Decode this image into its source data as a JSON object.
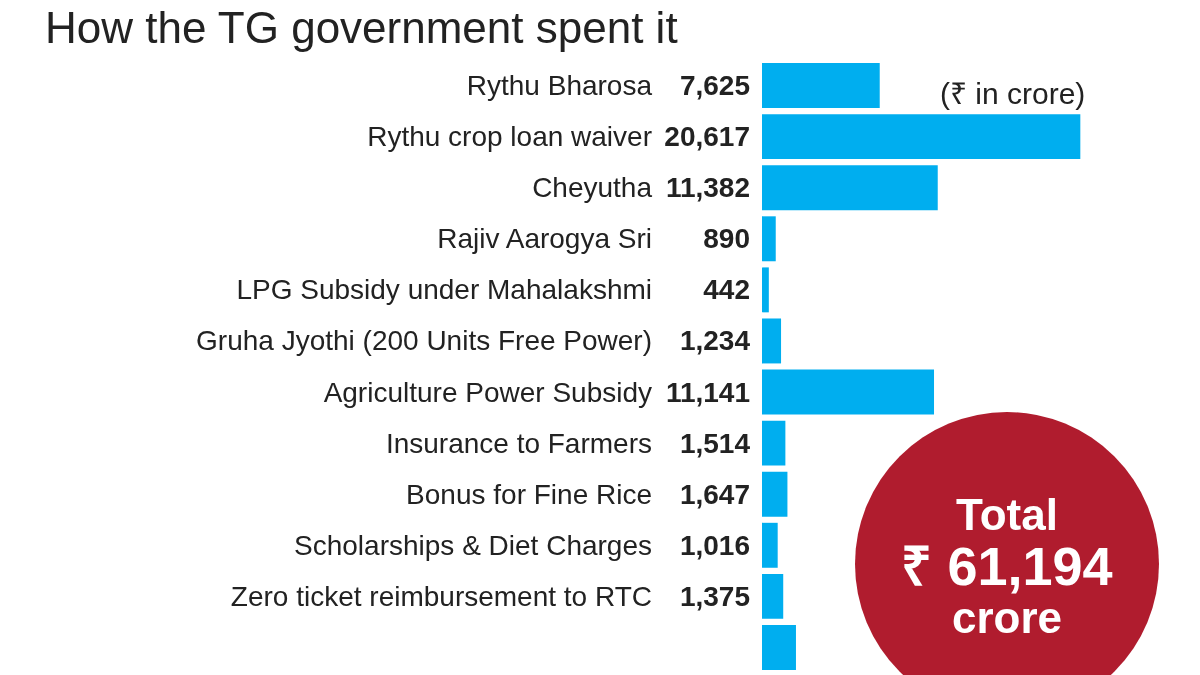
{
  "chart_data": {
    "type": "bar",
    "orientation": "horizontal",
    "title": "How the TG government spent it",
    "categories": [
      "Rythu Bharosa",
      "Rythu crop loan waiver",
      "Cheyutha",
      "Rajiv Aarogya Sri",
      "LPG Subsidy under Mahalakshmi",
      "Gruha Jyothi (200 Units Free Power)",
      "Agriculture Power Subsidy",
      "Insurance to Farmers",
      "Bonus for Fine Rice",
      "Scholarships & Diet Charges",
      "Zero ticket reimbursement to RTC",
      null
    ],
    "values": [
      7625,
      20617,
      11382,
      890,
      442,
      1234,
      11141,
      1514,
      1647,
      1016,
      1375,
      2200
    ],
    "value_labels": [
      "7,625",
      "20,617",
      "11,382",
      "890",
      "442",
      "1,234",
      "11,141",
      "1,514",
      "1,647",
      "1,016",
      "1,375",
      null
    ],
    "color": "#00aeef",
    "annotations": [
      "(₹ in crore)",
      "Total",
      "₹ 61,194",
      "crore"
    ]
  }
}
